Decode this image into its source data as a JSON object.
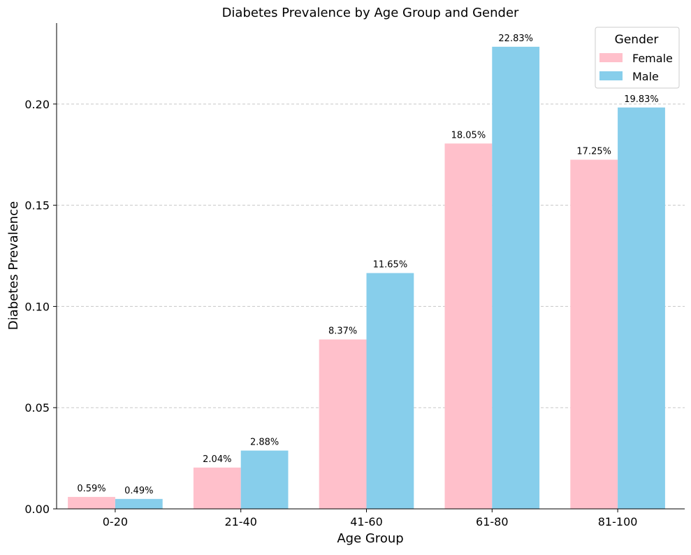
{
  "chart_data": {
    "type": "bar",
    "title": "Diabetes Prevalence by Age Group and Gender",
    "xlabel": "Age Group",
    "ylabel": "Diabetes Prevalence",
    "categories": [
      "0-20",
      "21-40",
      "41-60",
      "61-80",
      "81-100"
    ],
    "series": [
      {
        "name": "Female",
        "color": "#ffc0cb",
        "values": [
          0.0059,
          0.0204,
          0.0837,
          0.1805,
          0.1725
        ],
        "labels": [
          "0.59%",
          "2.04%",
          "8.37%",
          "18.05%",
          "17.25%"
        ]
      },
      {
        "name": "Male",
        "color": "#87ceeb",
        "values": [
          0.0049,
          0.0288,
          0.1165,
          0.2283,
          0.1983
        ],
        "labels": [
          "0.49%",
          "2.88%",
          "11.65%",
          "22.83%",
          "19.83%"
        ]
      }
    ],
    "ylim": [
      0,
      0.24
    ],
    "yticks": [
      0.0,
      0.05,
      0.1,
      0.15,
      0.2
    ],
    "ytick_labels": [
      "0.00",
      "0.05",
      "0.10",
      "0.15",
      "0.20"
    ],
    "grid": "y-dashed",
    "legend": {
      "title": "Gender",
      "position": "top-right"
    }
  }
}
